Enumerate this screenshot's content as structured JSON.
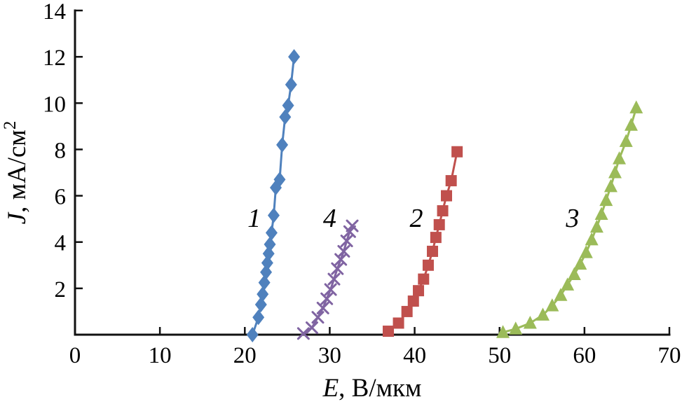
{
  "chart_data": {
    "type": "line",
    "title": "",
    "xlabel_var": "E",
    "xlabel_rest": ", В/мкм",
    "ylabel_var": "J",
    "ylabel_rest": ", мА/см",
    "ylabel_sup": "2",
    "xlim": [
      0,
      70
    ],
    "ylim": [
      0,
      14
    ],
    "xticks": [
      0,
      10,
      20,
      30,
      40,
      50,
      60,
      70
    ],
    "yticks": [
      2,
      4,
      6,
      8,
      10,
      12,
      14
    ],
    "grid": false,
    "legend_position": "inline-annotations",
    "axis_color": "#111111",
    "background": "#ffffff",
    "series": [
      {
        "name": "1",
        "marker": "diamond",
        "color": "#4f81bd",
        "label_pos": [
          21.1,
          4.65
        ],
        "points": [
          [
            20.9,
            0.0
          ],
          [
            21.6,
            0.75
          ],
          [
            21.9,
            1.3
          ],
          [
            22.1,
            1.75
          ],
          [
            22.3,
            2.25
          ],
          [
            22.5,
            2.7
          ],
          [
            22.65,
            3.1
          ],
          [
            22.8,
            3.5
          ],
          [
            22.95,
            3.9
          ],
          [
            23.15,
            4.4
          ],
          [
            23.4,
            5.15
          ],
          [
            23.65,
            6.35
          ],
          [
            24.1,
            6.7
          ],
          [
            24.4,
            8.2
          ],
          [
            24.75,
            9.4
          ],
          [
            25.1,
            9.9
          ],
          [
            25.45,
            10.8
          ],
          [
            25.8,
            12.0
          ]
        ]
      },
      {
        "name": "4",
        "marker": "x",
        "color": "#8064a2",
        "label_pos": [
          30.0,
          4.65
        ],
        "points": [
          [
            26.9,
            0.05
          ],
          [
            27.9,
            0.3
          ],
          [
            28.6,
            0.75
          ],
          [
            29.2,
            1.15
          ],
          [
            29.65,
            1.55
          ],
          [
            30.1,
            1.95
          ],
          [
            30.5,
            2.4
          ],
          [
            30.9,
            2.85
          ],
          [
            31.3,
            3.25
          ],
          [
            31.65,
            3.6
          ],
          [
            32.0,
            4.05
          ],
          [
            32.35,
            4.45
          ],
          [
            32.65,
            4.7
          ]
        ]
      },
      {
        "name": "2",
        "marker": "square",
        "color": "#c0504d",
        "label_pos": [
          40.2,
          4.65
        ],
        "points": [
          [
            36.9,
            0.15
          ],
          [
            38.1,
            0.5
          ],
          [
            39.1,
            1.0
          ],
          [
            39.85,
            1.45
          ],
          [
            40.45,
            1.9
          ],
          [
            41.05,
            2.4
          ],
          [
            41.6,
            3.0
          ],
          [
            42.1,
            3.6
          ],
          [
            42.5,
            4.2
          ],
          [
            42.9,
            4.75
          ],
          [
            43.3,
            5.35
          ],
          [
            43.75,
            6.0
          ],
          [
            44.3,
            6.65
          ],
          [
            45.0,
            7.9
          ]
        ]
      },
      {
        "name": "3",
        "marker": "triangle",
        "color": "#9bbb59",
        "label_pos": [
          58.6,
          4.65
        ],
        "points": [
          [
            50.4,
            0.1
          ],
          [
            51.9,
            0.25
          ],
          [
            53.6,
            0.5
          ],
          [
            55.1,
            0.85
          ],
          [
            56.2,
            1.25
          ],
          [
            57.2,
            1.7
          ],
          [
            58.0,
            2.15
          ],
          [
            58.8,
            2.6
          ],
          [
            59.5,
            3.05
          ],
          [
            60.2,
            3.55
          ],
          [
            60.85,
            4.1
          ],
          [
            61.45,
            4.65
          ],
          [
            62.0,
            5.2
          ],
          [
            62.55,
            5.8
          ],
          [
            63.1,
            6.4
          ],
          [
            63.6,
            7.0
          ],
          [
            64.1,
            7.6
          ],
          [
            64.9,
            8.35
          ],
          [
            65.5,
            9.05
          ],
          [
            66.1,
            9.8
          ]
        ]
      }
    ]
  }
}
